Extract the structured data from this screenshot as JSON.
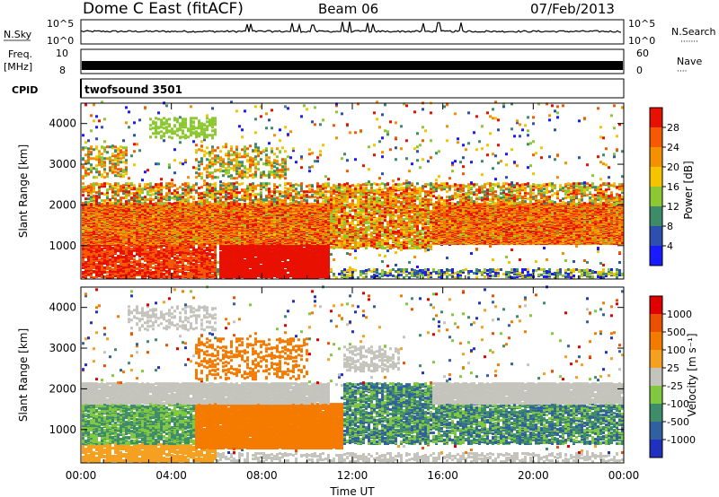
{
  "header": {
    "title": "Dome C East (fitACF)",
    "beam": "Beam 06",
    "date": "07/Feb/2013"
  },
  "top_panels": {
    "nsky": {
      "label": "N.Sky",
      "tick_top": "10^5",
      "tick_bottom": "10^0",
      "right_tick_top": "10^5",
      "right_tick_bottom": "10^0",
      "right_label": "N.Search",
      "right_label_dots": "·······"
    },
    "freq": {
      "label_line1": "Freq.",
      "label_line2": "[MHz]",
      "tick_top": "10",
      "tick_bottom": "8",
      "right_tick_top": "60",
      "right_tick_bottom": "0",
      "right_label": "Nave",
      "right_label_dots": "····"
    },
    "cpid": {
      "label": "CPID",
      "value": "twofsound 3501"
    }
  },
  "chart_data": [
    {
      "type": "heatmap",
      "name": "power",
      "ylabel": "Slant Range [km]",
      "yticks": [
        "1000",
        "2000",
        "3000",
        "4000"
      ],
      "ylim": [
        180,
        4500
      ],
      "xlim": [
        0,
        24
      ],
      "colorbar_label": "Power [dB]",
      "colorbar_ticks": [
        "4",
        "8",
        "12",
        "16",
        "20",
        "24",
        "28"
      ],
      "colors": [
        "#1a1aff",
        "#2c4fb0",
        "#3d8b68",
        "#8cc832",
        "#f5c400",
        "#f59000",
        "#f55a00",
        "#e81000"
      ]
    },
    {
      "type": "heatmap",
      "name": "velocity",
      "ylabel": "Slant Range [km]",
      "yticks": [
        "1000",
        "2000",
        "3000",
        "4000"
      ],
      "ylim": [
        180,
        4500
      ],
      "xlim": [
        0,
        24
      ],
      "xlabel": "Time UT",
      "xticks": [
        "00:00",
        "04:00",
        "08:00",
        "12:00",
        "16:00",
        "20:00",
        "00:00"
      ],
      "colorbar_label": "Velocity [m s⁻¹]",
      "colorbar_ticks": [
        "1000",
        "500",
        "100",
        "25",
        "-25",
        "-100",
        "-500",
        "-1000"
      ],
      "colors": [
        "#2030c0",
        "#3060a0",
        "#3e8c6a",
        "#80c840",
        "#c4c4bc",
        "#f5a020",
        "#f57a00",
        "#ea5000",
        "#e00000"
      ]
    }
  ]
}
